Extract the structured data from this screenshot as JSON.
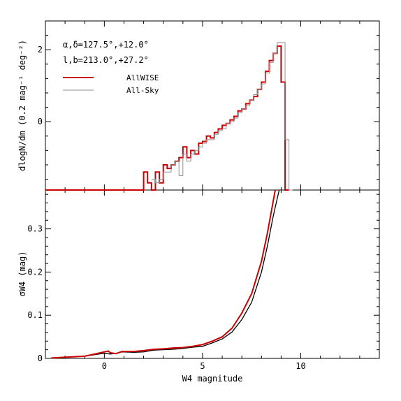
{
  "figure": {
    "annotation_line1": "α,δ=127.5°,+12.0°",
    "annotation_line2": "l,b=213.0°,+27.2°"
  },
  "chart_data": [
    {
      "type": "line",
      "title": "",
      "xlabel": "",
      "ylabel": "dlogN/dm (0.2 mag⁻¹ deg⁻²)",
      "xlim": [
        -3,
        14
      ],
      "ylim": [
        -1.9,
        2.8
      ],
      "x_ticks": [
        0,
        5,
        10
      ],
      "y_ticks": [
        0,
        2
      ],
      "y_tick_labels": [
        "0",
        "2"
      ],
      "legend": "top-left",
      "series": [
        {
          "name": "AllWISE",
          "color": "#cc0000",
          "step": true,
          "x": [
            -3.0,
            -2.8,
            -1.2,
            -1.0,
            0.0,
            0.6,
            0.8,
            1.0,
            1.8,
            2.0,
            2.2,
            2.4,
            2.6,
            2.8,
            3.0,
            3.2,
            3.4,
            3.6,
            3.8,
            4.0,
            4.2,
            4.4,
            4.6,
            4.8,
            5.0,
            5.2,
            5.4,
            5.6,
            5.8,
            6.0,
            6.2,
            6.4,
            6.6,
            6.8,
            7.0,
            7.2,
            7.4,
            7.6,
            7.8,
            8.0,
            8.2,
            8.4,
            8.6,
            8.8,
            9.0,
            9.2
          ],
          "y": [
            -1.9,
            -1.9,
            -1.9,
            -1.9,
            -1.9,
            -1.9,
            -1.9,
            -1.9,
            -1.9,
            -1.4,
            -1.7,
            -1.9,
            -1.4,
            -1.7,
            -1.2,
            -1.3,
            -1.2,
            -1.1,
            -1.0,
            -0.7,
            -1.0,
            -0.8,
            -0.9,
            -0.6,
            -0.55,
            -0.4,
            -0.45,
            -0.3,
            -0.2,
            -0.1,
            -0.05,
            0.05,
            0.15,
            0.3,
            0.35,
            0.5,
            0.6,
            0.7,
            0.9,
            1.1,
            1.4,
            1.7,
            1.9,
            2.1,
            1.1,
            -1.9
          ]
        },
        {
          "name": "All-Sky",
          "color": "#909090",
          "step": true,
          "x": [
            2.4,
            2.6,
            2.8,
            3.0,
            3.2,
            3.4,
            3.6,
            3.8,
            4.0,
            4.2,
            4.4,
            4.6,
            4.8,
            5.0,
            5.2,
            5.4,
            5.6,
            5.8,
            6.0,
            6.2,
            6.4,
            6.6,
            6.8,
            7.0,
            7.2,
            7.4,
            7.6,
            7.8,
            8.0,
            8.2,
            8.4,
            8.6,
            8.8,
            9.0,
            9.2,
            9.4
          ],
          "y": [
            -1.6,
            -1.7,
            -1.6,
            -1.4,
            -1.4,
            -1.2,
            -1.1,
            -1.5,
            -0.9,
            -1.1,
            -0.9,
            -0.8,
            -0.7,
            -0.6,
            -0.5,
            -0.5,
            -0.35,
            -0.25,
            -0.2,
            -0.05,
            0.0,
            0.1,
            0.25,
            0.35,
            0.45,
            0.6,
            0.75,
            0.9,
            1.05,
            1.35,
            1.65,
            1.9,
            2.2,
            2.2,
            -0.5,
            -1.9
          ]
        }
      ]
    },
    {
      "type": "line",
      "title": "",
      "xlabel": "W4 magnitude",
      "ylabel": "σW4 (mag)",
      "xlim": [
        -3,
        14
      ],
      "ylim": [
        0,
        0.39
      ],
      "x_ticks": [
        0,
        5,
        10
      ],
      "y_ticks": [
        0,
        0.1,
        0.2,
        0.3
      ],
      "y_tick_labels": [
        "0",
        "0.1",
        "0.2",
        "0.3"
      ],
      "series": [
        {
          "name": "All-Sky",
          "color": "#000000",
          "x": [
            -2.7,
            -1.0,
            0.0,
            0.3,
            0.6,
            0.9,
            1.5,
            2.0,
            2.5,
            3.0,
            3.5,
            4.0,
            4.5,
            5.0,
            5.5,
            6.0,
            6.5,
            7.0,
            7.5,
            8.0,
            8.3,
            8.6,
            8.9
          ],
          "y": [
            0.001,
            0.005,
            0.012,
            0.01,
            0.012,
            0.015,
            0.014,
            0.015,
            0.019,
            0.02,
            0.021,
            0.023,
            0.026,
            0.028,
            0.036,
            0.045,
            0.061,
            0.09,
            0.13,
            0.2,
            0.26,
            0.33,
            0.39
          ]
        },
        {
          "name": "AllWISE",
          "color": "#cc0000",
          "x": [
            -2.7,
            -1.0,
            0.0,
            0.2,
            0.3,
            0.6,
            0.9,
            1.5,
            2.0,
            2.5,
            3.0,
            3.5,
            4.0,
            4.5,
            5.0,
            5.5,
            6.0,
            6.5,
            7.0,
            7.5,
            8.0,
            8.3,
            8.5,
            8.7
          ],
          "y": [
            0.001,
            0.005,
            0.015,
            0.017,
            0.013,
            0.011,
            0.016,
            0.016,
            0.018,
            0.021,
            0.022,
            0.024,
            0.025,
            0.028,
            0.032,
            0.04,
            0.05,
            0.07,
            0.105,
            0.15,
            0.225,
            0.29,
            0.34,
            0.39
          ]
        }
      ]
    }
  ]
}
